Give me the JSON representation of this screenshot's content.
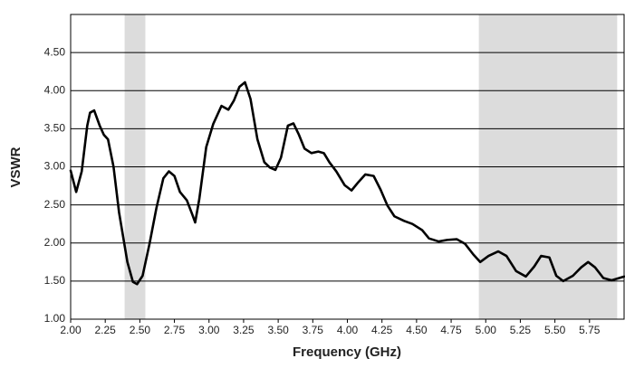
{
  "chart_data": {
    "type": "line",
    "x_label": "Frequency (GHz)",
    "y_label": "VSWR",
    "x": [
      2.0,
      2.04,
      2.08,
      2.12,
      2.14,
      2.17,
      2.21,
      2.24,
      2.27,
      2.31,
      2.35,
      2.41,
      2.45,
      2.48,
      2.52,
      2.57,
      2.62,
      2.67,
      2.71,
      2.75,
      2.79,
      2.84,
      2.88,
      2.9,
      2.93,
      2.98,
      3.03,
      3.09,
      3.14,
      3.18,
      3.22,
      3.26,
      3.3,
      3.35,
      3.4,
      3.44,
      3.48,
      3.52,
      3.57,
      3.61,
      3.65,
      3.69,
      3.74,
      3.79,
      3.83,
      3.87,
      3.92,
      3.98,
      4.03,
      4.08,
      4.13,
      4.19,
      4.24,
      4.29,
      4.34,
      4.41,
      4.47,
      4.54,
      4.59,
      4.66,
      4.72,
      4.79,
      4.85,
      4.91,
      4.96,
      5.02,
      5.09,
      5.15,
      5.22,
      5.29,
      5.35,
      5.4,
      5.46,
      5.51,
      5.56,
      5.63,
      5.69,
      5.74,
      5.79,
      5.85,
      5.91,
      6.0
    ],
    "values": [
      2.95,
      2.67,
      2.94,
      3.54,
      3.71,
      3.74,
      3.54,
      3.42,
      3.36,
      3.0,
      2.4,
      1.75,
      1.49,
      1.46,
      1.57,
      1.99,
      2.46,
      2.85,
      2.94,
      2.88,
      2.67,
      2.56,
      2.37,
      2.27,
      2.58,
      3.26,
      3.56,
      3.8,
      3.75,
      3.87,
      4.05,
      4.11,
      3.89,
      3.36,
      3.06,
      2.99,
      2.96,
      3.12,
      3.54,
      3.57,
      3.42,
      3.24,
      3.18,
      3.2,
      3.18,
      3.06,
      2.94,
      2.76,
      2.69,
      2.8,
      2.9,
      2.88,
      2.7,
      2.49,
      2.35,
      2.29,
      2.25,
      2.17,
      2.06,
      2.02,
      2.04,
      2.05,
      1.99,
      1.85,
      1.75,
      1.83,
      1.89,
      1.83,
      1.63,
      1.56,
      1.69,
      1.83,
      1.81,
      1.57,
      1.5,
      1.57,
      1.68,
      1.75,
      1.68,
      1.54,
      1.51,
      1.56
    ],
    "color": "#000000",
    "bands": [
      [
        2.39,
        2.54
      ],
      [
        4.95,
        5.95
      ]
    ],
    "band_color": "#dcdcdc",
    "xlim": [
      2,
      6
    ],
    "ylim": [
      1,
      5
    ],
    "xticks": [
      {
        "value": 2,
        "label": "2.00"
      },
      2.25,
      {
        "value": 2.5,
        "label": "2.50"
      },
      2.75,
      {
        "value": 3,
        "label": "3.00"
      },
      3.25,
      {
        "value": 3.5,
        "label": "3.50"
      },
      3.75,
      {
        "value": 4,
        "label": "4.00"
      },
      4.25,
      {
        "value": 4.5,
        "label": "4.50"
      },
      4.75,
      {
        "value": 5,
        "label": "5.00"
      },
      5.25,
      {
        "value": 5.5,
        "label": "5.50"
      },
      5.75
    ],
    "yticks": [
      {
        "value": 1,
        "label": "1.00"
      },
      {
        "value": 1.5,
        "label": "1.50"
      },
      {
        "value": 2,
        "label": "2.00"
      },
      {
        "value": 2.5,
        "label": "2.50"
      },
      {
        "value": 3,
        "label": "3.00"
      },
      {
        "value": 3.5,
        "label": "3.50"
      },
      {
        "value": 4,
        "label": "4.00"
      },
      {
        "value": 4.5,
        "label": "4.50"
      }
    ],
    "grid": true
  }
}
